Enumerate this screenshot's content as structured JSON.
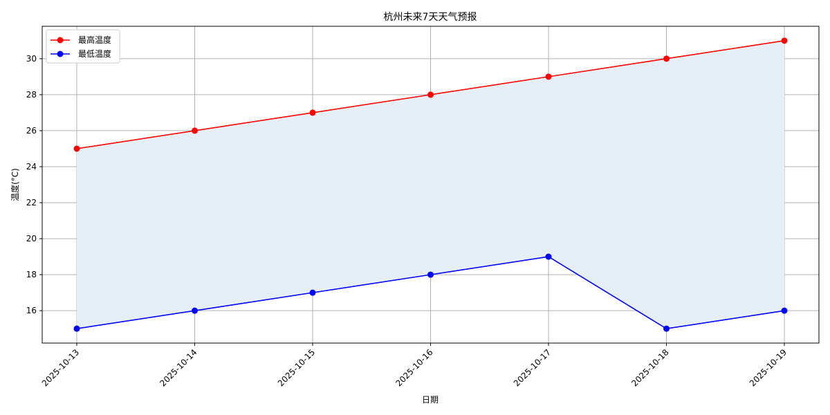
{
  "chart_data": {
    "type": "line",
    "title": "杭州未来7天天气预报",
    "xlabel": "日期",
    "ylabel": "温度(°C)",
    "categories": [
      "2025-10-13",
      "2025-10-14",
      "2025-10-15",
      "2025-10-16",
      "2025-10-17",
      "2025-10-18",
      "2025-10-19"
    ],
    "series": [
      {
        "name": "最高温度",
        "values": [
          25,
          26,
          27,
          28,
          29,
          30,
          31
        ],
        "color": "#ff0000"
      },
      {
        "name": "最低温度",
        "values": [
          15,
          16,
          17,
          18,
          19,
          15,
          16
        ],
        "color": "#0000ff"
      }
    ],
    "fill_between": {
      "color": "#e6eef7"
    },
    "ylim": [
      14.2,
      31.8
    ],
    "yticks": [
      16,
      18,
      20,
      22,
      24,
      26,
      28,
      30
    ],
    "grid": true,
    "legend_position": "top-left",
    "x_tick_rotation": 45
  }
}
